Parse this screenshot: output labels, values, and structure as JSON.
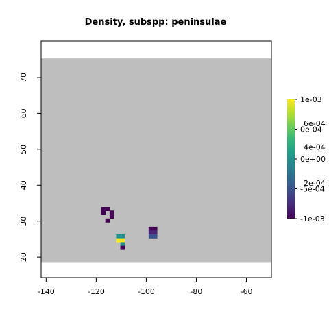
{
  "chart_data": {
    "type": "heatmap",
    "title": "Density, subspp: peninsulae",
    "xlabel": "",
    "ylabel": "",
    "xlim": [
      -142,
      -50
    ],
    "ylim": [
      14.3,
      80.1
    ],
    "x_ticks": [
      -140,
      -120,
      -100,
      -80,
      -60
    ],
    "y_ticks": [
      20,
      30,
      40,
      50,
      60,
      70
    ],
    "x_tick_labels": [
      "-140",
      "-120",
      "-100",
      "-80",
      "-60"
    ],
    "y_tick_labels": [
      "20",
      "30",
      "40",
      "50",
      "60",
      "70"
    ],
    "background_region": {
      "x": [
        -142,
        -50
      ],
      "y": [
        18.6,
        75.3
      ],
      "color": "#bebebe"
    },
    "cell_size": [
      1.7,
      1.08
    ],
    "colorscale": {
      "palette": "viridis",
      "min": -0.001,
      "max": 0.001,
      "labels": [
        "1e-03",
        "0e-04",
        "0e+00",
        "-5e-04",
        "-1e-03"
      ],
      "overprinted_labels": [
        "6e-04",
        "4e-04",
        "2e-04"
      ]
    },
    "cells": [
      {
        "x": -117.2,
        "y": 33.4,
        "value": -0.001
      },
      {
        "x": -115.5,
        "y": 33.4,
        "value": -0.001
      },
      {
        "x": -117.2,
        "y": 32.4,
        "value": -0.001
      },
      {
        "x": -113.8,
        "y": 32.4,
        "value": -0.001
      },
      {
        "x": -113.8,
        "y": 31.3,
        "value": -0.001
      },
      {
        "x": -115.5,
        "y": 30.2,
        "value": -0.001
      },
      {
        "x": -111.2,
        "y": 25.8,
        "value": 0.0
      },
      {
        "x": -109.5,
        "y": 25.8,
        "value": 0.0
      },
      {
        "x": -111.2,
        "y": 24.7,
        "value": 0.001
      },
      {
        "x": -109.5,
        "y": 24.7,
        "value": 0.001
      },
      {
        "x": -109.5,
        "y": 23.6,
        "value": 0.0
      },
      {
        "x": -109.5,
        "y": 22.6,
        "value": -0.001
      },
      {
        "x": -98.2,
        "y": 27.9,
        "value": -0.001
      },
      {
        "x": -96.5,
        "y": 27.9,
        "value": -0.001
      },
      {
        "x": -98.2,
        "y": 26.9,
        "value": -0.0008
      },
      {
        "x": -96.5,
        "y": 26.9,
        "value": -0.0008
      },
      {
        "x": -98.2,
        "y": 25.8,
        "value": -0.0005
      },
      {
        "x": -96.5,
        "y": 25.8,
        "value": -0.0005
      }
    ]
  }
}
